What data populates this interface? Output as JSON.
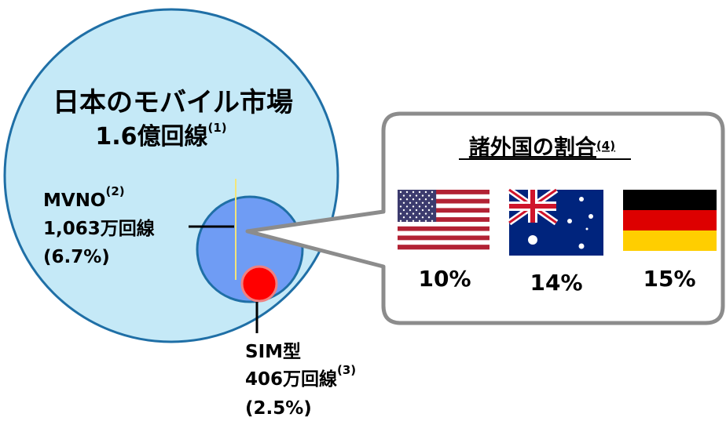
{
  "market": {
    "title": "日本のモバイル市場",
    "total": "1.6億回線",
    "total_note": "(1)"
  },
  "mvno": {
    "label": "MVNO",
    "note": "(2)",
    "lines": "1,063万回線",
    "share": "(6.7%)"
  },
  "sim": {
    "label": "SIM型",
    "lines": "406万回線",
    "note": "(3)",
    "share": "(2.5%)"
  },
  "callout": {
    "title": "諸外国の割合",
    "note": "(4)",
    "countries": [
      {
        "share": "10%"
      },
      {
        "share": "14%"
      },
      {
        "share": "15%"
      }
    ]
  }
}
